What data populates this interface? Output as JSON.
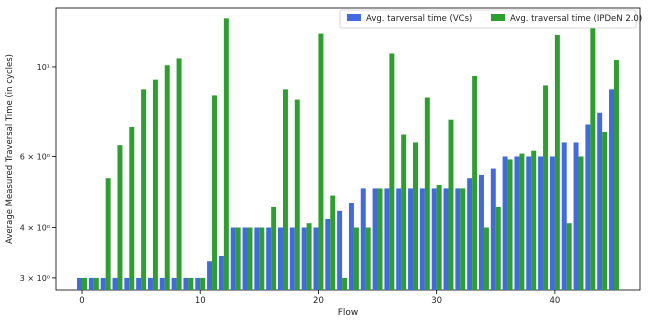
{
  "chart_data": {
    "type": "bar",
    "xlabel": "Flow",
    "ylabel": "Average Measured Traversal Time (in cycles)",
    "yscale": "log",
    "ylim": [
      2.8,
      14.0
    ],
    "xlim": [
      -2.2,
      47.2
    ],
    "y_ticks": [
      {
        "value": 3,
        "label": "3 × 10⁰"
      },
      {
        "value": 4,
        "label": "4 × 10⁰"
      },
      {
        "value": 6,
        "label": "6 × 10⁰"
      },
      {
        "value": 10,
        "label": "10¹"
      }
    ],
    "x_ticks": [
      {
        "value": 0,
        "label": "0"
      },
      {
        "value": 10,
        "label": "10"
      },
      {
        "value": 20,
        "label": "20"
      },
      {
        "value": 30,
        "label": "30"
      },
      {
        "value": 40,
        "label": "40"
      }
    ],
    "legend_position": "top-right",
    "x": [
      0,
      1,
      2,
      3,
      4,
      5,
      6,
      7,
      8,
      9,
      10,
      11,
      12,
      13,
      14,
      15,
      16,
      17,
      18,
      19,
      20,
      21,
      22,
      23,
      24,
      25,
      26,
      27,
      28,
      29,
      30,
      31,
      32,
      33,
      34,
      35,
      36,
      37,
      38,
      39,
      40,
      41,
      42,
      43,
      44,
      45
    ],
    "series": [
      {
        "name": "Avg. tarversal time (VCs)",
        "color": "#4169e1",
        "values": [
          3,
          3,
          3,
          3,
          3,
          3,
          3,
          3,
          3,
          3,
          3,
          3.3,
          3.4,
          4,
          4,
          4,
          4,
          4,
          4,
          4,
          4,
          4.2,
          4.4,
          4.6,
          5,
          5,
          5,
          5,
          5,
          5,
          5,
          5,
          5,
          5.3,
          5.4,
          5.6,
          6,
          6,
          6,
          6,
          6,
          6.5,
          6.5,
          7.2,
          7.7,
          8.8
        ]
      },
      {
        "name": "Avg. traversal time (IPDeN 2.0)",
        "color": "#2ca02c",
        "values": [
          3,
          3,
          5.3,
          6.4,
          7.1,
          8.8,
          9.3,
          10.1,
          10.5,
          3,
          3,
          8.5,
          13.2,
          4,
          4,
          4,
          4.5,
          8.8,
          8.3,
          4.1,
          12.1,
          4.8,
          3,
          4,
          4,
          5,
          10.8,
          6.8,
          6.5,
          8.4,
          5.1,
          7.4,
          5,
          9.5,
          4,
          4.5,
          5.9,
          6.1,
          6.2,
          9.0,
          12.0,
          4.1,
          6,
          12.9,
          6.9,
          10.4
        ]
      }
    ]
  }
}
